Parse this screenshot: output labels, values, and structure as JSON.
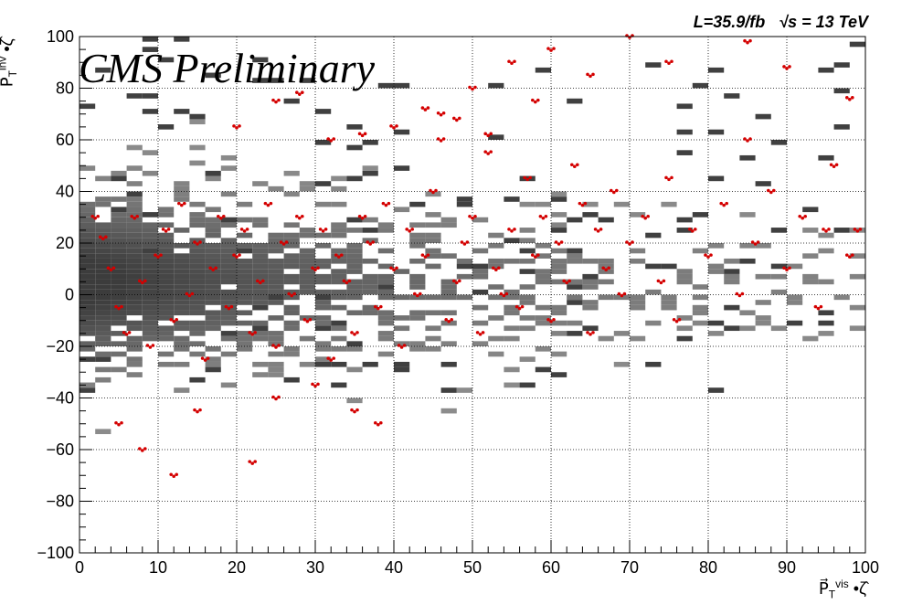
{
  "header": {
    "lumi_label": "L=35.9/fb   √s = 13 TeV",
    "experiment_label": "CMS Preliminary"
  },
  "chart_data": {
    "type": "heatmap",
    "title": "",
    "xlabel": "P⃗_T^vis • ζ̂",
    "ylabel": "P⃗_T^inv • ζ̂",
    "xlim": [
      0,
      100
    ],
    "ylim": [
      -100,
      100
    ],
    "x_ticks": [
      0,
      10,
      20,
      30,
      40,
      50,
      60,
      70,
      80,
      90,
      100
    ],
    "y_ticks": [
      -100,
      -80,
      -60,
      -40,
      -20,
      0,
      20,
      40,
      60,
      80,
      100
    ],
    "grid": true,
    "background_histogram": {
      "bin_width_x": 2,
      "bin_width_y": 2,
      "color_scale": "greyscale",
      "description_of_density": "dense core near x 0-50, y -30 to 40; sparse tail to x 100"
    },
    "scatter_overlay": {
      "color": "#d40000",
      "points": [
        [
          2,
          30
        ],
        [
          3,
          22
        ],
        [
          4,
          10
        ],
        [
          5,
          -5
        ],
        [
          6,
          -15
        ],
        [
          7,
          30
        ],
        [
          8,
          5
        ],
        [
          9,
          -20
        ],
        [
          10,
          15
        ],
        [
          11,
          25
        ],
        [
          12,
          -10
        ],
        [
          13,
          35
        ],
        [
          14,
          0
        ],
        [
          15,
          20
        ],
        [
          16,
          -25
        ],
        [
          17,
          10
        ],
        [
          18,
          30
        ],
        [
          19,
          -5
        ],
        [
          20,
          15
        ],
        [
          21,
          25
        ],
        [
          22,
          -15
        ],
        [
          23,
          5
        ],
        [
          24,
          35
        ],
        [
          25,
          -20
        ],
        [
          26,
          20
        ],
        [
          27,
          0
        ],
        [
          28,
          30
        ],
        [
          29,
          -10
        ],
        [
          30,
          10
        ],
        [
          31,
          25
        ],
        [
          32,
          -25
        ],
        [
          33,
          15
        ],
        [
          34,
          5
        ],
        [
          35,
          -15
        ],
        [
          36,
          30
        ],
        [
          37,
          20
        ],
        [
          38,
          -5
        ],
        [
          39,
          35
        ],
        [
          40,
          10
        ],
        [
          41,
          -20
        ],
        [
          42,
          25
        ],
        [
          43,
          0
        ],
        [
          44,
          15
        ],
        [
          45,
          40
        ],
        [
          46,
          60
        ],
        [
          47,
          -10
        ],
        [
          48,
          5
        ],
        [
          49,
          20
        ],
        [
          50,
          30
        ],
        [
          51,
          -15
        ],
        [
          52,
          55
        ],
        [
          53,
          10
        ],
        [
          54,
          0
        ],
        [
          55,
          25
        ],
        [
          56,
          -5
        ],
        [
          57,
          45
        ],
        [
          58,
          15
        ],
        [
          59,
          30
        ],
        [
          60,
          -10
        ],
        [
          61,
          20
        ],
        [
          62,
          5
        ],
        [
          63,
          50
        ],
        [
          64,
          35
        ],
        [
          65,
          -15
        ],
        [
          66,
          25
        ],
        [
          67,
          10
        ],
        [
          68,
          40
        ],
        [
          69,
          0
        ],
        [
          70,
          20
        ],
        [
          72,
          30
        ],
        [
          74,
          5
        ],
        [
          75,
          45
        ],
        [
          76,
          -10
        ],
        [
          78,
          25
        ],
        [
          80,
          15
        ],
        [
          82,
          35
        ],
        [
          84,
          0
        ],
        [
          85,
          60
        ],
        [
          86,
          20
        ],
        [
          88,
          40
        ],
        [
          90,
          10
        ],
        [
          92,
          30
        ],
        [
          94,
          -5
        ],
        [
          95,
          25
        ],
        [
          96,
          50
        ],
        [
          98,
          15
        ],
        [
          99,
          25
        ],
        [
          5,
          -50
        ],
        [
          8,
          -60
        ],
        [
          15,
          -45
        ],
        [
          25,
          -40
        ],
        [
          30,
          -35
        ],
        [
          35,
          -45
        ],
        [
          38,
          -50
        ],
        [
          12,
          -70
        ],
        [
          22,
          -65
        ],
        [
          46,
          70
        ],
        [
          50,
          80
        ],
        [
          55,
          90
        ],
        [
          60,
          95
        ],
        [
          65,
          85
        ],
        [
          70,
          100
        ],
        [
          75,
          90
        ],
        [
          85,
          98
        ],
        [
          90,
          88
        ],
        [
          98,
          76
        ],
        [
          20,
          65
        ],
        [
          25,
          75
        ],
        [
          28,
          78
        ],
        [
          32,
          60
        ],
        [
          36,
          62
        ],
        [
          40,
          65
        ],
        [
          44,
          72
        ],
        [
          48,
          68
        ],
        [
          52,
          62
        ],
        [
          58,
          75
        ]
      ]
    }
  }
}
